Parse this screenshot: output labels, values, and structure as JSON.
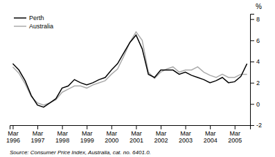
{
  "chart_data": {
    "type": "line",
    "ylabel": "%",
    "source": "Source: Consumer Price Index, Australia, cat. no. 6401.0.",
    "categories": [
      "Mar\n1996",
      null,
      null,
      null,
      "Mar\n1997",
      null,
      null,
      null,
      "Mar\n1998",
      null,
      null,
      null,
      "Mar\n1999",
      null,
      null,
      null,
      "Mar\n2000",
      null,
      null,
      null,
      "Mar\n2001",
      null,
      null,
      null,
      "Mar\n2002",
      null,
      null,
      null,
      "Mar\n2003",
      null,
      null,
      null,
      "Mar\n2004",
      null,
      null,
      null,
      "Mar\n2005",
      null,
      null
    ],
    "series": [
      {
        "name": "Perth",
        "color": "#000000",
        "values": [
          3.8,
          3.2,
          2.2,
          0.8,
          -0.1,
          -0.3,
          0.1,
          0.5,
          1.5,
          1.7,
          2.3,
          2.0,
          1.8,
          2.0,
          2.3,
          2.5,
          3.2,
          3.8,
          4.8,
          5.8,
          6.5,
          5.2,
          2.8,
          2.5,
          3.2,
          3.2,
          3.2,
          2.8,
          3.0,
          2.7,
          2.5,
          2.3,
          2.0,
          2.2,
          2.5,
          2.0,
          2.1,
          2.6,
          3.8
        ]
      },
      {
        "name": "Australia",
        "color": "#aaaaaa",
        "values": [
          3.5,
          2.9,
          1.9,
          0.7,
          0.1,
          -0.1,
          0.1,
          0.4,
          1.1,
          1.4,
          1.7,
          1.7,
          1.5,
          1.8,
          2.0,
          2.2,
          2.8,
          3.3,
          4.5,
          5.8,
          6.8,
          6.0,
          3.0,
          2.4,
          3.0,
          3.3,
          3.5,
          3.0,
          3.2,
          3.2,
          3.5,
          3.0,
          2.7,
          2.5,
          2.8,
          2.5,
          2.5,
          2.8,
          2.8
        ]
      }
    ],
    "ylim": [
      -2,
      8.5
    ],
    "yticks": [
      -2,
      0,
      2,
      4,
      6,
      8
    ],
    "grid": false,
    "legend": "top-left"
  }
}
